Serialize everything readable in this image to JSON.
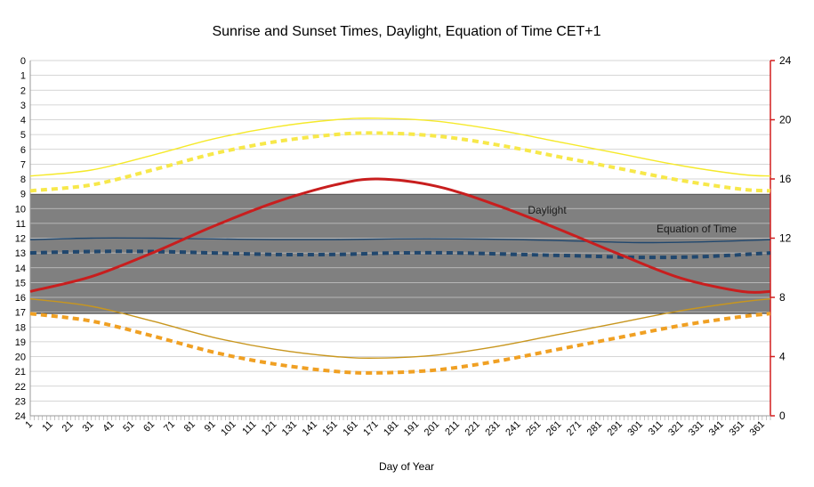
{
  "chart_data": {
    "type": "line",
    "title": "Sunrise and Sunset Times, Daylight, Equation of Time CET+1",
    "xlabel": "Day of Year",
    "ylabel_left": "",
    "ylabel_right": "",
    "x_ticks": [
      "1",
      "11",
      "21",
      "31",
      "41",
      "51",
      "61",
      "71",
      "81",
      "91",
      "101",
      "111",
      "121",
      "131",
      "141",
      "151",
      "161",
      "171",
      "181",
      "191",
      "201",
      "211",
      "221",
      "231",
      "241",
      "251",
      "261",
      "271",
      "281",
      "291",
      "301",
      "311",
      "321",
      "331",
      "341",
      "351",
      "361"
    ],
    "xlim": [
      1,
      365
    ],
    "ylim_left": [
      0,
      24
    ],
    "y_left_inverted": true,
    "y_left_ticks": [
      "0",
      "1",
      "2",
      "3",
      "4",
      "5",
      "6",
      "7",
      "8",
      "9",
      "10",
      "11",
      "12",
      "13",
      "14",
      "15",
      "16",
      "17",
      "18",
      "19",
      "20",
      "21",
      "22",
      "23",
      "24"
    ],
    "ylim_right": [
      0,
      24
    ],
    "y_right_ticks": [
      "0",
      "4",
      "8",
      "12",
      "16",
      "20",
      "24"
    ],
    "grid": true,
    "night_band": {
      "from_hour": 9,
      "to_hour": 17,
      "color": "#808080"
    },
    "annotations": [
      {
        "text": "Daylight",
        "x": 240,
        "y": 10
      },
      {
        "text": "Equation of Time",
        "x": 300,
        "y": 11.3
      }
    ],
    "series": [
      {
        "name": "",
        "axis": "left",
        "style": "solid",
        "color": "#f5e92a",
        "x": [
          1,
          31,
          61,
          91,
          121,
          151,
          172,
          201,
          231,
          261,
          291,
          321,
          351,
          365
        ],
        "values": [
          7.8,
          7.4,
          6.4,
          5.3,
          4.5,
          4.0,
          3.9,
          4.1,
          4.7,
          5.5,
          6.3,
          7.1,
          7.7,
          7.8
        ]
      },
      {
        "name": "",
        "axis": "left",
        "style": "dashed",
        "color": "#f7e84a",
        "x": [
          1,
          31,
          61,
          91,
          121,
          151,
          172,
          201,
          231,
          261,
          291,
          321,
          351,
          365
        ],
        "values": [
          8.8,
          8.4,
          7.4,
          6.3,
          5.5,
          5.0,
          4.9,
          5.1,
          5.7,
          6.5,
          7.3,
          8.1,
          8.7,
          8.8
        ]
      },
      {
        "name": "",
        "axis": "left",
        "style": "solid",
        "color": "#20476e",
        "x": [
          1,
          31,
          61,
          91,
          121,
          151,
          181,
          211,
          241,
          271,
          301,
          331,
          365
        ],
        "values": [
          12.1,
          12.0,
          12.0,
          12.05,
          12.1,
          12.1,
          12.05,
          12.05,
          12.1,
          12.2,
          12.3,
          12.25,
          12.1
        ]
      },
      {
        "name": "",
        "axis": "left",
        "style": "dashed",
        "color": "#20476e",
        "x": [
          1,
          31,
          61,
          91,
          121,
          151,
          181,
          211,
          241,
          271,
          301,
          331,
          365
        ],
        "values": [
          13.0,
          12.9,
          12.9,
          13.0,
          13.1,
          13.1,
          13.0,
          13.0,
          13.1,
          13.2,
          13.3,
          13.25,
          13.0
        ]
      },
      {
        "name": "",
        "axis": "left",
        "style": "solid",
        "color": "#c8961e",
        "x": [
          1,
          31,
          61,
          91,
          121,
          151,
          172,
          201,
          231,
          261,
          291,
          321,
          351,
          365
        ],
        "values": [
          16.1,
          16.6,
          17.6,
          18.7,
          19.5,
          20.0,
          20.1,
          19.9,
          19.3,
          18.5,
          17.7,
          16.9,
          16.3,
          16.1
        ]
      },
      {
        "name": "",
        "axis": "left",
        "style": "dashed",
        "color": "#f0a023",
        "x": [
          1,
          31,
          61,
          91,
          121,
          151,
          172,
          201,
          231,
          261,
          291,
          321,
          351,
          365
        ],
        "values": [
          17.1,
          17.6,
          18.6,
          19.7,
          20.5,
          21.0,
          21.1,
          20.9,
          20.3,
          19.5,
          18.7,
          17.9,
          17.3,
          17.1
        ]
      },
      {
        "name": "Daylight",
        "axis": "right",
        "style": "solid",
        "color": "#c81e1e",
        "x": [
          1,
          31,
          61,
          91,
          121,
          151,
          172,
          201,
          231,
          261,
          291,
          321,
          351,
          365
        ],
        "values": [
          8.4,
          9.4,
          11.0,
          12.8,
          14.4,
          15.6,
          16.0,
          15.5,
          14.2,
          12.6,
          10.9,
          9.3,
          8.4,
          8.4
        ]
      }
    ]
  }
}
